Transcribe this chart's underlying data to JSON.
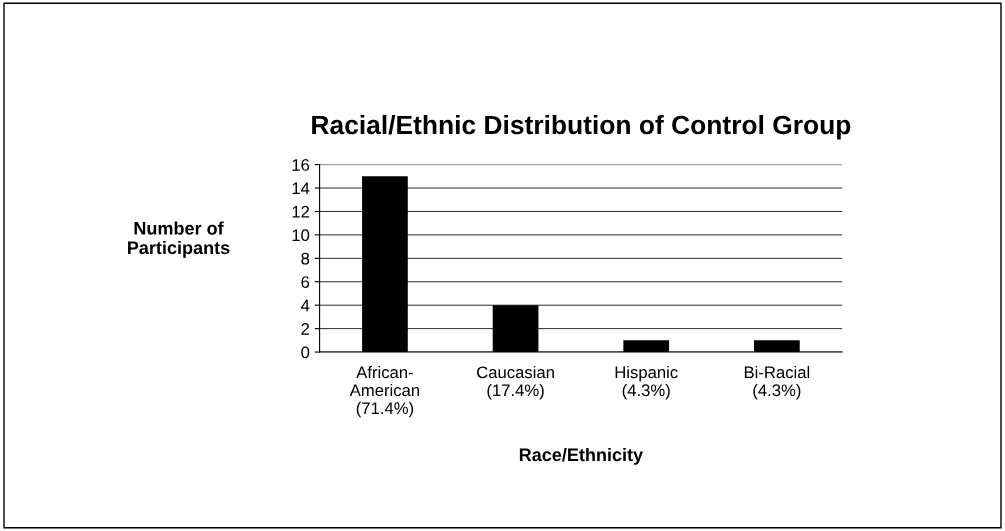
{
  "chart_data": {
    "type": "bar",
    "title": "Racial/Ethnic Distribution of Control Group",
    "xlabel": "Race/Ethnicity",
    "ylabel": "Number of\nParticipants",
    "categories": [
      "African-\nAmerican\n(71.4%)",
      "Caucasian\n(17.4%)",
      "Hispanic\n(4.3%)",
      "Bi-Racial\n(4.3%)"
    ],
    "values": [
      15,
      4,
      1,
      1
    ],
    "color": "#000000",
    "ylim": [
      0,
      16
    ],
    "yticks": [
      0,
      2,
      4,
      6,
      8,
      10,
      12,
      14,
      16
    ],
    "grid": "y",
    "legend": false
  }
}
